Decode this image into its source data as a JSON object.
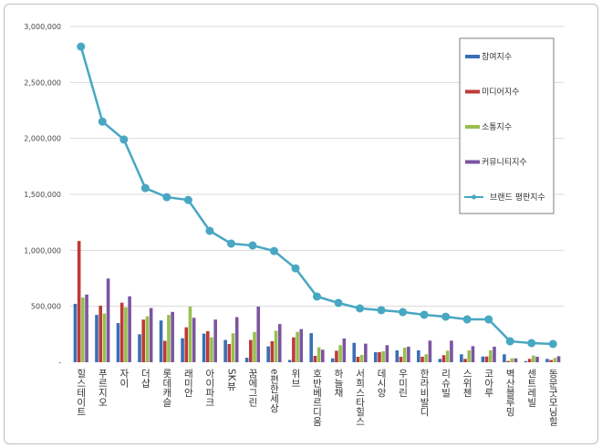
{
  "chart_data": {
    "type": "bar+line",
    "title": "",
    "xlabel": "",
    "ylabel": "",
    "ylim": [
      0,
      3000000
    ],
    "ytick_step": 500000,
    "yticks": [
      "-",
      "500,000",
      "1,000,000",
      "1,500,000",
      "2,000,000",
      "2,500,000",
      "3,000,000"
    ],
    "grid": true,
    "legend_position": "right",
    "categories": [
      "힐스테이트",
      "푸르지오",
      "자이",
      "더샵",
      "롯데캐슬",
      "래미안",
      "아이파크",
      "SK뷰",
      "꿈에그린",
      "e편한세상",
      "위브",
      "호반베르디움",
      "하늘채",
      "서희스타힐스",
      "데시앙",
      "우미린",
      "한라비발디",
      "리슈빌",
      "스위첸",
      "코아루",
      "벽산블루밍",
      "센트레빌",
      "동문굿모닝힐"
    ],
    "series": [
      {
        "name": "참여지수",
        "type": "bar",
        "color": "#3a6fb7",
        "values": [
          522000,
          423000,
          350000,
          250000,
          373000,
          214000,
          256000,
          199000,
          40000,
          142000,
          20000,
          260000,
          35000,
          173000,
          90000,
          106000,
          106000,
          30000,
          71000,
          51000,
          71000,
          10000,
          30000
        ]
      },
      {
        "name": "미디어지수",
        "type": "bar",
        "color": "#be3a36",
        "values": [
          1083000,
          505000,
          532000,
          381000,
          191000,
          312000,
          278000,
          163000,
          199000,
          188000,
          222000,
          57000,
          103000,
          49000,
          90000,
          49000,
          49000,
          63000,
          30000,
          51000,
          11000,
          30000,
          20000
        ]
      },
      {
        "name": "소통지수",
        "type": "bar",
        "color": "#98bf4e",
        "values": [
          578000,
          435000,
          491000,
          410000,
          423000,
          497000,
          223000,
          259000,
          271000,
          281000,
          271000,
          133000,
          152000,
          65000,
          98000,
          130000,
          71000,
          103000,
          106000,
          106000,
          35000,
          60000,
          38000
        ]
      },
      {
        "name": "커뮤니티지수",
        "type": "bar",
        "color": "#7b559f",
        "values": [
          605000,
          748000,
          589000,
          484000,
          450000,
          397000,
          381000,
          403000,
          497000,
          341000,
          296000,
          112000,
          212000,
          166000,
          152000,
          139000,
          193000,
          193000,
          144000,
          139000,
          35000,
          49000,
          54000
        ]
      },
      {
        "name": "브랜드 평판지수",
        "type": "line",
        "color": "#48a7c2",
        "values": [
          2820000,
          2150000,
          1990000,
          1556000,
          1475000,
          1450000,
          1174000,
          1060000,
          1043000,
          994000,
          839000,
          587000,
          530000,
          481000,
          465000,
          448000,
          424000,
          407000,
          383000,
          383000,
          187000,
          171000,
          163000
        ]
      }
    ]
  }
}
